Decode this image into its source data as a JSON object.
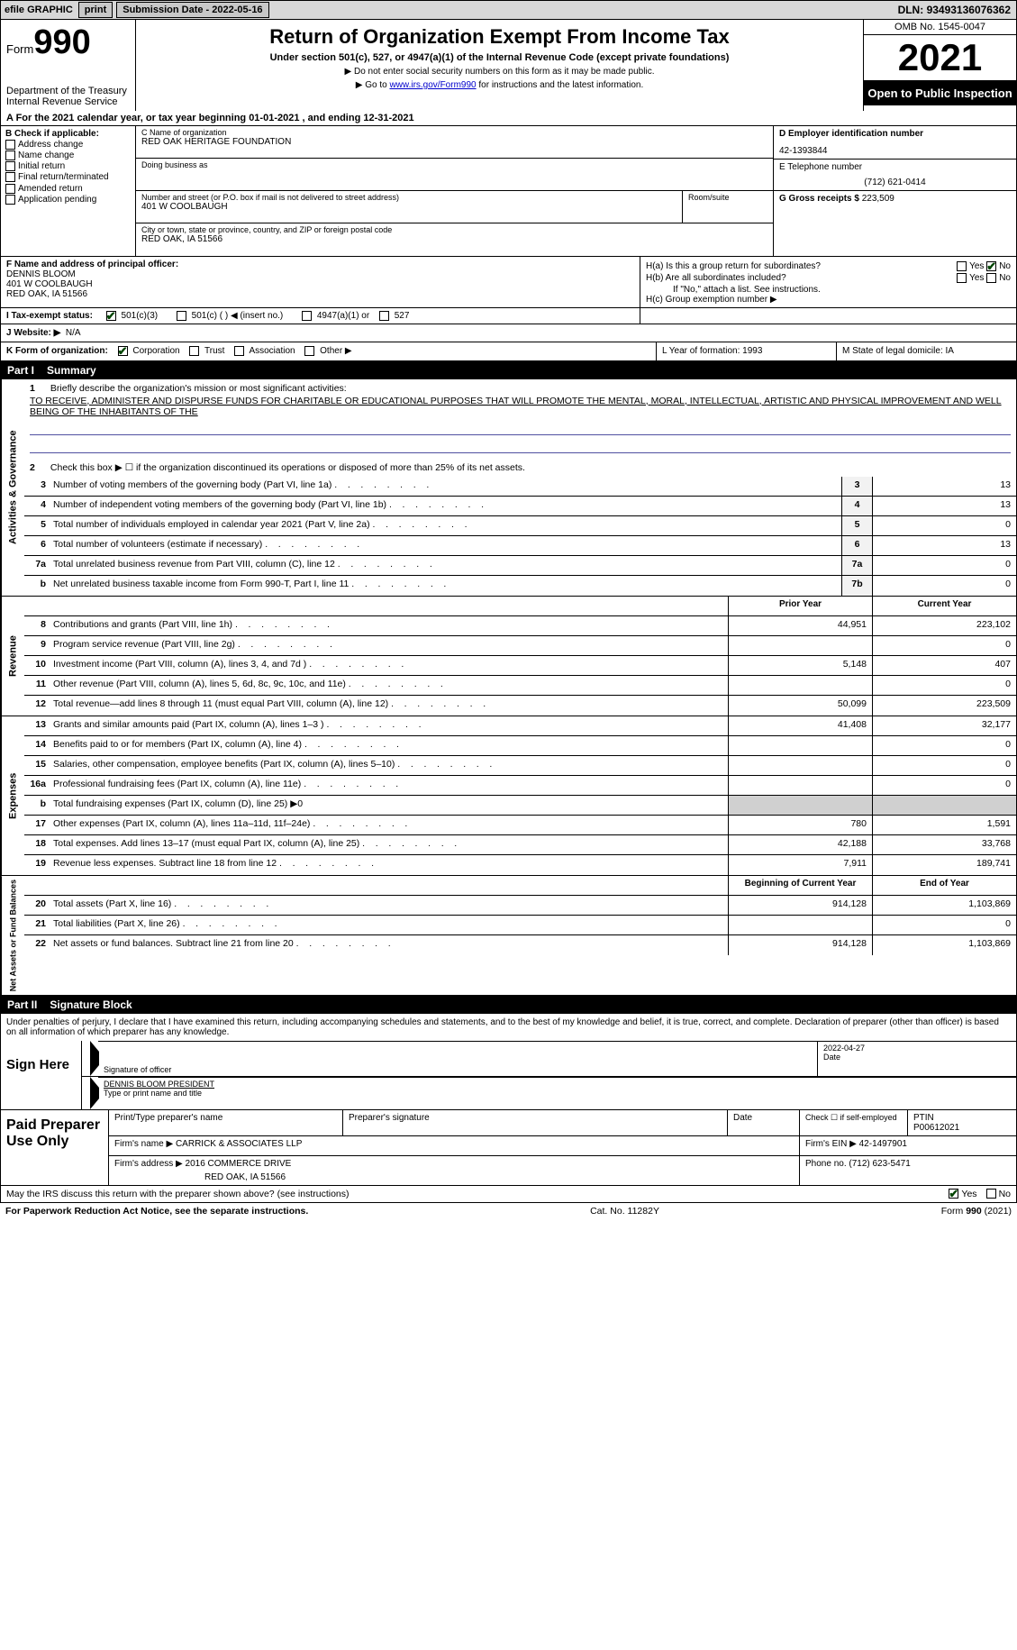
{
  "topbar": {
    "efile": "efile GRAPHIC",
    "print": "print",
    "subdate_label": "Submission Date - ",
    "subdate": "2022-05-16",
    "dln_label": "DLN: ",
    "dln": "93493136076362"
  },
  "header": {
    "form_label": "Form",
    "form_num": "990",
    "dept": "Department of the Treasury",
    "irs": "Internal Revenue Service",
    "title": "Return of Organization Exempt From Income Tax",
    "sub1": "Under section 501(c), 527, or 4947(a)(1) of the Internal Revenue Code (except private foundations)",
    "sub2": "▶ Do not enter social security numbers on this form as it may be made public.",
    "sub3_pre": "▶ Go to ",
    "sub3_link": "www.irs.gov/Form990",
    "sub3_post": " for instructions and the latest information.",
    "omb": "OMB No. 1545-0047",
    "year": "2021",
    "otp": "Open to Public Inspection"
  },
  "lineA": {
    "text": "A For the 2021 calendar year, or tax year beginning 01-01-2021    , and ending 12-31-2021"
  },
  "boxB": {
    "label": "B Check if applicable:",
    "items": [
      "Address change",
      "Name change",
      "Initial return",
      "Final return/terminated",
      "Amended return",
      "Application pending"
    ]
  },
  "boxC": {
    "name_label": "C Name of organization",
    "name": "RED OAK HERITAGE FOUNDATION",
    "dba_label": "Doing business as",
    "dba": "",
    "street_label": "Number and street (or P.O. box if mail is not delivered to street address)",
    "room_label": "Room/suite",
    "street": "401 W COOLBAUGH",
    "city_label": "City or town, state or province, country, and ZIP or foreign postal code",
    "city": "RED OAK, IA  51566"
  },
  "boxD": {
    "ein_label": "D Employer identification number",
    "ein": "42-1393844",
    "phone_label": "E Telephone number",
    "phone": "(712) 621-0414",
    "gross_label": "G Gross receipts $ ",
    "gross": "223,509"
  },
  "boxF": {
    "label": "F Name and address of principal officer:",
    "name": "DENNIS BLOOM",
    "street": "401 W COOLBAUGH",
    "city": "RED OAK, IA  51566"
  },
  "boxH": {
    "ha_label": "H(a)  Is this a group return for subordinates?",
    "hb_label": "H(b)  Are all subordinates included?",
    "hb_note": "If \"No,\" attach a list. See instructions.",
    "hc_label": "H(c)  Group exemption number ▶"
  },
  "lineI": {
    "label": "I   Tax-exempt status:",
    "opts": [
      "501(c)(3)",
      "501(c) (   ) ◀ (insert no.)",
      "4947(a)(1) or",
      "527"
    ]
  },
  "lineJ": {
    "label": "J   Website: ▶",
    "val": "N/A"
  },
  "lineK": {
    "k1_label": "K Form of organization:",
    "k1_opts": [
      "Corporation",
      "Trust",
      "Association",
      "Other ▶"
    ],
    "k2": "L Year of formation: 1993",
    "k3": "M State of legal domicile: IA"
  },
  "part1": {
    "num": "Part I",
    "title": "Summary"
  },
  "mission": {
    "num": "1",
    "label": "Briefly describe the organization's mission or most significant activities:",
    "text": "TO RECEIVE, ADMINISTER AND DISPURSE FUNDS FOR CHARITABLE OR EDUCATIONAL PURPOSES THAT WILL PROMOTE THE MENTAL, MORAL, INTELLECTUAL, ARTISTIC AND PHYSICAL IMPROVEMENT AND WELL BEING OF THE INHABITANTS OF THE"
  },
  "governance": {
    "sidelabel": "Activities & Governance",
    "line2": "Check this box ▶ ☐ if the organization discontinued its operations or disposed of more than 25% of its net assets.",
    "rows": [
      {
        "n": "3",
        "d": "Number of voting members of the governing body (Part VI, line 1a)",
        "c": "3",
        "v": "13"
      },
      {
        "n": "4",
        "d": "Number of independent voting members of the governing body (Part VI, line 1b)",
        "c": "4",
        "v": "13"
      },
      {
        "n": "5",
        "d": "Total number of individuals employed in calendar year 2021 (Part V, line 2a)",
        "c": "5",
        "v": "0"
      },
      {
        "n": "6",
        "d": "Total number of volunteers (estimate if necessary)",
        "c": "6",
        "v": "13"
      },
      {
        "n": "7a",
        "d": "Total unrelated business revenue from Part VIII, column (C), line 12",
        "c": "7a",
        "v": "0"
      },
      {
        "n": "b",
        "d": "Net unrelated business taxable income from Form 990-T, Part I, line 11",
        "c": "7b",
        "v": "0"
      }
    ]
  },
  "revenue": {
    "sidelabel": "Revenue",
    "header": {
      "prior": "Prior Year",
      "curr": "Current Year"
    },
    "rows": [
      {
        "n": "8",
        "d": "Contributions and grants (Part VIII, line 1h)",
        "p": "44,951",
        "c": "223,102"
      },
      {
        "n": "9",
        "d": "Program service revenue (Part VIII, line 2g)",
        "p": "",
        "c": "0"
      },
      {
        "n": "10",
        "d": "Investment income (Part VIII, column (A), lines 3, 4, and 7d )",
        "p": "5,148",
        "c": "407"
      },
      {
        "n": "11",
        "d": "Other revenue (Part VIII, column (A), lines 5, 6d, 8c, 9c, 10c, and 11e)",
        "p": "",
        "c": "0"
      },
      {
        "n": "12",
        "d": "Total revenue—add lines 8 through 11 (must equal Part VIII, column (A), line 12)",
        "p": "50,099",
        "c": "223,509"
      }
    ]
  },
  "expenses": {
    "sidelabel": "Expenses",
    "rows": [
      {
        "n": "13",
        "d": "Grants and similar amounts paid (Part IX, column (A), lines 1–3 )",
        "p": "41,408",
        "c": "32,177"
      },
      {
        "n": "14",
        "d": "Benefits paid to or for members (Part IX, column (A), line 4)",
        "p": "",
        "c": "0"
      },
      {
        "n": "15",
        "d": "Salaries, other compensation, employee benefits (Part IX, column (A), lines 5–10)",
        "p": "",
        "c": "0"
      },
      {
        "n": "16a",
        "d": "Professional fundraising fees (Part IX, column (A), line 11e)",
        "p": "",
        "c": "0"
      },
      {
        "n": "b",
        "d": "Total fundraising expenses (Part IX, column (D), line 25) ▶0",
        "p": "grey",
        "c": "grey"
      },
      {
        "n": "17",
        "d": "Other expenses (Part IX, column (A), lines 11a–11d, 11f–24e)",
        "p": "780",
        "c": "1,591"
      },
      {
        "n": "18",
        "d": "Total expenses. Add lines 13–17 (must equal Part IX, column (A), line 25)",
        "p": "42,188",
        "c": "33,768"
      },
      {
        "n": "19",
        "d": "Revenue less expenses. Subtract line 18 from line 12",
        "p": "7,911",
        "c": "189,741"
      }
    ]
  },
  "netassets": {
    "sidelabel": "Net Assets or Fund Balances",
    "header": {
      "prior": "Beginning of Current Year",
      "curr": "End of Year"
    },
    "rows": [
      {
        "n": "20",
        "d": "Total assets (Part X, line 16)",
        "p": "914,128",
        "c": "1,103,869"
      },
      {
        "n": "21",
        "d": "Total liabilities (Part X, line 26)",
        "p": "",
        "c": "0"
      },
      {
        "n": "22",
        "d": "Net assets or fund balances. Subtract line 21 from line 20",
        "p": "914,128",
        "c": "1,103,869"
      }
    ]
  },
  "part2": {
    "num": "Part II",
    "title": "Signature Block"
  },
  "sigtext": "Under penalties of perjury, I declare that I have examined this return, including accompanying schedules and statements, and to the best of my knowledge and belief, it is true, correct, and complete. Declaration of preparer (other than officer) is based on all information of which preparer has any knowledge.",
  "sign": {
    "label": "Sign Here",
    "sig_label": "Signature of officer",
    "date": "2022-04-27",
    "date_label": "Date",
    "name": "DENNIS BLOOM  PRESIDENT",
    "name_label": "Type or print name and title"
  },
  "preparer": {
    "label": "Paid Preparer Use Only",
    "h1": "Print/Type preparer's name",
    "h2": "Preparer's signature",
    "h3": "Date",
    "h4_label": "Check ☐ if self-employed",
    "h5_label": "PTIN",
    "h5": "P00612021",
    "firm_label": "Firm's name    ▶",
    "firm": "CARRICK & ASSOCIATES LLP",
    "ein_label": "Firm's EIN ▶",
    "ein": "42-1497901",
    "addr_label": "Firm's address ▶",
    "addr1": "2016 COMMERCE DRIVE",
    "addr2": "RED OAK, IA  51566",
    "phone_label": "Phone no. ",
    "phone": "(712) 623-5471"
  },
  "footer": {
    "q": "May the IRS discuss this return with the preparer shown above? (see instructions)",
    "yes": "Yes",
    "no": "No"
  },
  "lastline": {
    "left": "For Paperwork Reduction Act Notice, see the separate instructions.",
    "mid": "Cat. No. 11282Y",
    "right": "Form 990 (2021)"
  }
}
